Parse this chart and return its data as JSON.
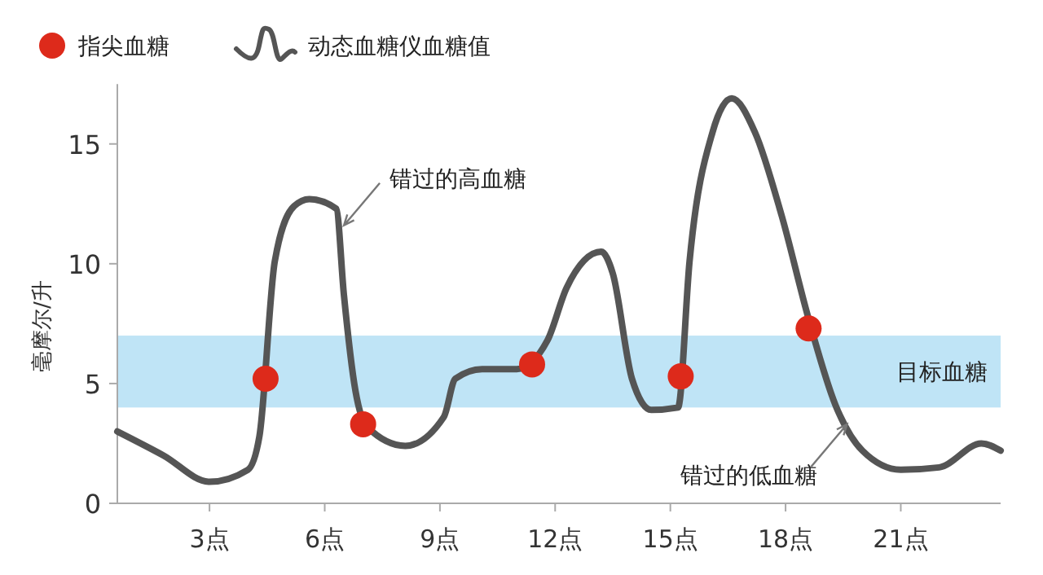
{
  "chart_data": {
    "type": "line",
    "ylabel": "毫摩尔/升",
    "xlim": [
      0.6,
      23.6
    ],
    "ylim": [
      0,
      17.5
    ],
    "xticks": [
      {
        "value": 3,
        "label": "3点"
      },
      {
        "value": 6,
        "label": "6点"
      },
      {
        "value": 9,
        "label": "9点"
      },
      {
        "value": 12,
        "label": "12点"
      },
      {
        "value": 15,
        "label": "15点"
      },
      {
        "value": 18,
        "label": "18点"
      },
      {
        "value": 21,
        "label": "21点"
      }
    ],
    "yticks": [
      0,
      5,
      10,
      15
    ],
    "grid": false,
    "legend": "top left",
    "line_style": "solid",
    "bands": [
      {
        "axis": "y",
        "from": 4,
        "to": 7,
        "label": "目标血糖",
        "color": "#bfe4f6"
      }
    ],
    "series": [
      {
        "name": "指尖血糖",
        "type": "scatter",
        "color": "#dd2a1b",
        "marker": "circle",
        "x": [
          4.46,
          7.0,
          11.4,
          15.27,
          18.6
        ],
        "values": [
          5.2,
          3.3,
          5.8,
          5.3,
          7.3
        ]
      },
      {
        "name": "动态血糖仪血糖值",
        "color": "#555555",
        "marker": "none",
        "x": [
          0.6,
          1.8,
          3.0,
          4.0,
          4.3,
          4.7,
          5.2,
          5.6,
          6.3,
          6.5,
          6.8,
          7.1,
          8.1,
          9.1,
          9.4,
          10.1,
          11.0,
          11.8,
          12.3,
          13.2,
          13.5,
          14.0,
          14.5,
          15.2,
          15.5,
          16.1,
          16.6,
          17.2,
          17.9,
          18.6,
          19.3,
          20.0,
          21.0,
          22.0,
          23.1,
          23.6
        ],
        "values": [
          3.0,
          2.0,
          0.9,
          1.4,
          2.8,
          10.1,
          12.4,
          12.7,
          12.3,
          8.7,
          4.7,
          3.2,
          2.4,
          3.6,
          5.2,
          5.6,
          5.6,
          6.8,
          9.0,
          10.5,
          9.6,
          5.2,
          3.9,
          4.0,
          10.1,
          15.5,
          16.9,
          15.5,
          12.0,
          7.7,
          4.1,
          2.2,
          1.4,
          1.5,
          2.5,
          2.2
        ]
      }
    ],
    "annotations": [
      {
        "text": "错过的高血糖",
        "x": 6.5,
        "y": 11.6
      },
      {
        "text": "错过的低血糖",
        "x": 19.6,
        "y": 3.3
      }
    ]
  }
}
